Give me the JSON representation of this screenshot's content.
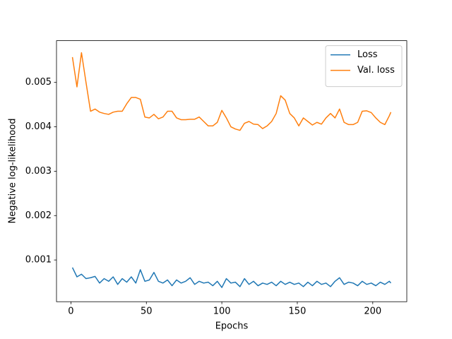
{
  "chart_data": {
    "type": "line",
    "xlabel": "Epochs",
    "ylabel": "Negative log-likelihood",
    "x": [
      1,
      4,
      7,
      10,
      13,
      16,
      19,
      22,
      25,
      28,
      31,
      34,
      37,
      40,
      43,
      46,
      49,
      52,
      55,
      58,
      61,
      64,
      67,
      70,
      73,
      76,
      79,
      82,
      85,
      88,
      91,
      94,
      97,
      100,
      103,
      106,
      109,
      112,
      115,
      118,
      121,
      124,
      127,
      130,
      133,
      136,
      139,
      142,
      145,
      148,
      151,
      154,
      157,
      160,
      163,
      166,
      169,
      172,
      175,
      178,
      181,
      184,
      187,
      190,
      193,
      196,
      199,
      202,
      205,
      208,
      211,
      212
    ],
    "series": [
      {
        "name": "Loss",
        "color": "#1f77b4",
        "values": [
          0.00083,
          0.00062,
          0.00068,
          0.00058,
          0.0006,
          0.00063,
          0.00048,
          0.00058,
          0.00052,
          0.00062,
          0.00045,
          0.00058,
          0.0005,
          0.00062,
          0.00048,
          0.00078,
          0.00052,
          0.00055,
          0.00072,
          0.00052,
          0.00048,
          0.00055,
          0.00042,
          0.00055,
          0.00048,
          0.00052,
          0.0006,
          0.00045,
          0.00052,
          0.00048,
          0.0005,
          0.00042,
          0.00052,
          0.00038,
          0.00058,
          0.00048,
          0.0005,
          0.0004,
          0.00058,
          0.00045,
          0.00052,
          0.00042,
          0.00048,
          0.00045,
          0.0005,
          0.00042,
          0.00052,
          0.00045,
          0.0005,
          0.00045,
          0.00048,
          0.0004,
          0.0005,
          0.00042,
          0.00052,
          0.00045,
          0.00048,
          0.0004,
          0.00052,
          0.0006,
          0.00045,
          0.0005,
          0.00048,
          0.00042,
          0.00052,
          0.00045,
          0.00048,
          0.00042,
          0.0005,
          0.00045,
          0.00052,
          0.00048
        ]
      },
      {
        "name": "Val. loss",
        "color": "#ff7f0e",
        "values": [
          0.00557,
          0.0049,
          0.00567,
          0.005,
          0.00435,
          0.0044,
          0.00433,
          0.0043,
          0.00428,
          0.00433,
          0.00435,
          0.00435,
          0.00452,
          0.00466,
          0.00466,
          0.00462,
          0.00422,
          0.0042,
          0.00428,
          0.00418,
          0.00422,
          0.00435,
          0.00435,
          0.0042,
          0.00416,
          0.00416,
          0.00417,
          0.00417,
          0.00422,
          0.00412,
          0.00402,
          0.00402,
          0.0041,
          0.00437,
          0.0042,
          0.004,
          0.00395,
          0.00392,
          0.00408,
          0.00412,
          0.00406,
          0.00405,
          0.00396,
          0.00402,
          0.00412,
          0.0043,
          0.0047,
          0.0046,
          0.0043,
          0.0042,
          0.00402,
          0.0042,
          0.00412,
          0.00404,
          0.0041,
          0.00406,
          0.0042,
          0.0043,
          0.0042,
          0.0044,
          0.0041,
          0.00405,
          0.00405,
          0.0041,
          0.00435,
          0.00436,
          0.00432,
          0.0042,
          0.0041,
          0.00405,
          0.00425,
          0.00433
        ]
      }
    ],
    "xlim": [
      -9.55,
      222.55
    ],
    "xticks": [
      0,
      50,
      100,
      150,
      200
    ],
    "ylim": [
      6e-05,
      0.00594
    ],
    "yticks": [
      0.001,
      0.002,
      0.003,
      0.004,
      0.005
    ],
    "legend": "upper right"
  }
}
